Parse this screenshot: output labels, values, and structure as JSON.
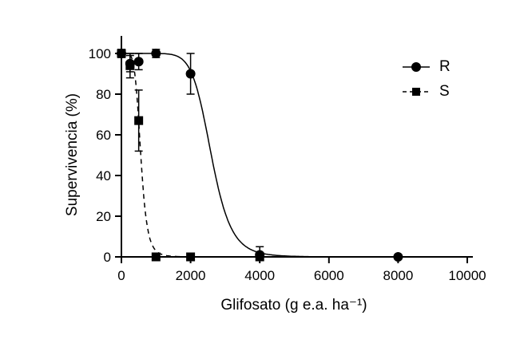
{
  "chart_data": {
    "type": "scatter",
    "xlabel": "Glifosato (g e.a. ha⁻¹)",
    "ylabel": "Supervivencia (%)",
    "xlim": [
      0,
      10000
    ],
    "ylim": [
      0,
      100
    ],
    "x_ticks": [
      0,
      2000,
      4000,
      6000,
      8000,
      10000
    ],
    "y_ticks": [
      0,
      20,
      40,
      60,
      80,
      100
    ],
    "grid": false,
    "legend_position": "top-right",
    "axis_color": "#000000",
    "series": [
      {
        "name": "R",
        "marker": "circle",
        "line": "solid",
        "color": "#000000",
        "points": [
          {
            "x": 0,
            "y": 100,
            "err": 0
          },
          {
            "x": 250,
            "y": 95,
            "err": 4
          },
          {
            "x": 500,
            "y": 96,
            "err": 4
          },
          {
            "x": 1000,
            "y": 100,
            "err": 2
          },
          {
            "x": 2000,
            "y": 90,
            "err": 10
          },
          {
            "x": 4000,
            "y": 1,
            "err": 4
          },
          {
            "x": 8000,
            "y": 0,
            "err": 0
          }
        ],
        "fit_curve": {
          "model": "logistic",
          "ec50": 2600,
          "hill": 9,
          "xmax": 8000
        }
      },
      {
        "name": "S",
        "marker": "square",
        "line": "dashed",
        "color": "#000000",
        "points": [
          {
            "x": 0,
            "y": 100,
            "err": 2
          },
          {
            "x": 250,
            "y": 94,
            "err": 6
          },
          {
            "x": 500,
            "y": 67,
            "err": 15
          },
          {
            "x": 1000,
            "y": 0,
            "err": 0
          },
          {
            "x": 2000,
            "y": 0,
            "err": 0
          },
          {
            "x": 4000,
            "y": 0,
            "err": 0
          }
        ],
        "fit_curve": {
          "model": "logistic",
          "ec50": 560,
          "hill": 6,
          "xmax": 4000
        }
      }
    ]
  }
}
